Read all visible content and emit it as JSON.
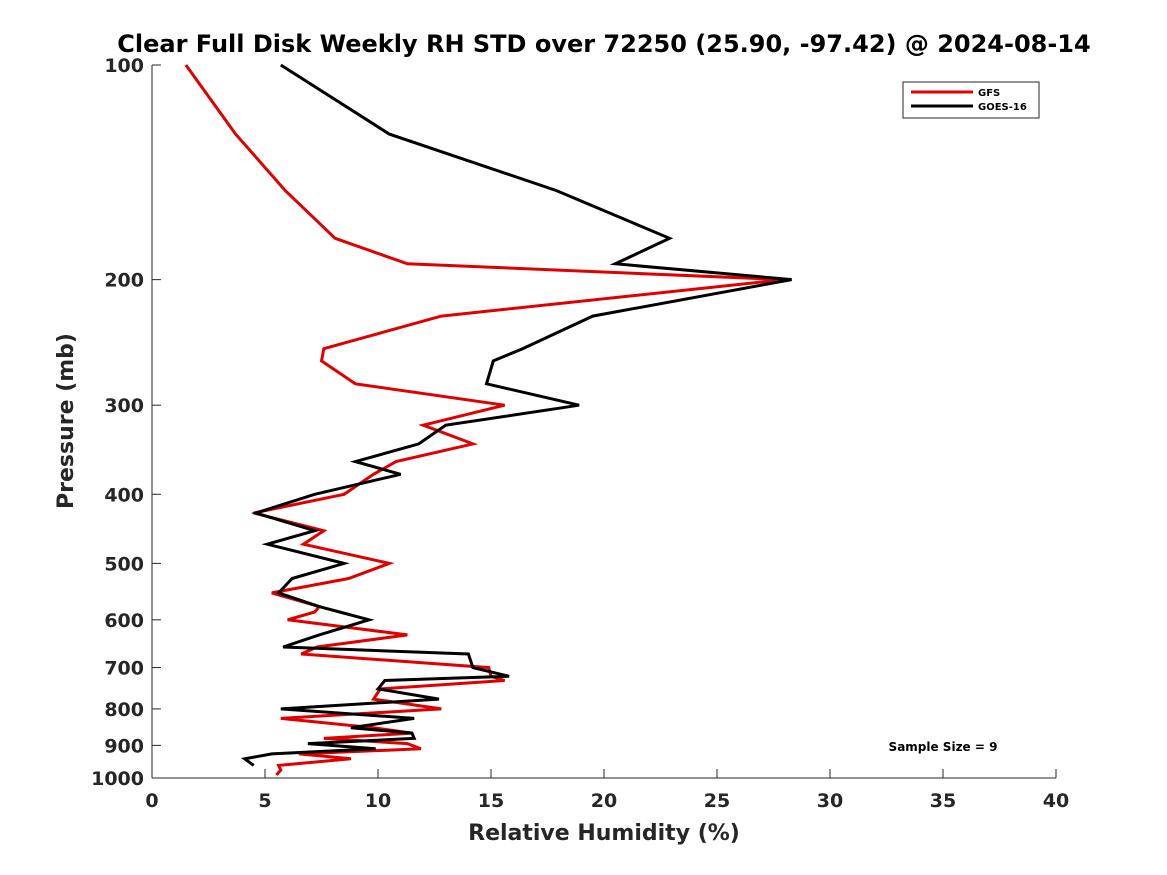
{
  "chart_data": {
    "type": "line",
    "title": "Clear Full Disk Weekly RH STD over 72250 (25.90, -97.42) @ 2024-08-14",
    "xlabel": "Relative Humidity (%)",
    "ylabel": "Pressure (mb)",
    "xlim": [
      0,
      40
    ],
    "ylim": [
      100,
      1000
    ],
    "yscale": "log",
    "y_reversed": true,
    "x_ticks": [
      0,
      5,
      10,
      15,
      20,
      25,
      30,
      35,
      40
    ],
    "y_ticks": [
      100,
      200,
      300,
      400,
      500,
      600,
      700,
      800,
      900,
      1000
    ],
    "grid": false,
    "legend_position": "top-right",
    "annotation": "Sample Size = 9",
    "series": [
      {
        "name": "GFS",
        "color": "#e00000",
        "points": [
          [
            1.5,
            100
          ],
          [
            3.7,
            125
          ],
          [
            5.9,
            150
          ],
          [
            8.1,
            175
          ],
          [
            11.3,
            190
          ],
          [
            28.0,
            200
          ],
          [
            12.8,
            225
          ],
          [
            7.6,
            250
          ],
          [
            7.5,
            260
          ],
          [
            9.0,
            280
          ],
          [
            15.6,
            300
          ],
          [
            12.0,
            320
          ],
          [
            14.2,
            340
          ],
          [
            10.8,
            360
          ],
          [
            9.8,
            375
          ],
          [
            8.5,
            400
          ],
          [
            4.5,
            425
          ],
          [
            7.6,
            450
          ],
          [
            6.7,
            470
          ],
          [
            10.5,
            500
          ],
          [
            8.7,
            525
          ],
          [
            5.3,
            550
          ],
          [
            7.4,
            575
          ],
          [
            7.2,
            585
          ],
          [
            6.0,
            600
          ],
          [
            11.3,
            630
          ],
          [
            7.3,
            655
          ],
          [
            6.6,
            670
          ],
          [
            14.9,
            700
          ],
          [
            15.0,
            720
          ],
          [
            15.6,
            730
          ],
          [
            10.1,
            750
          ],
          [
            9.8,
            775
          ],
          [
            12.8,
            800
          ],
          [
            5.7,
            825
          ],
          [
            9.8,
            850
          ],
          [
            11.5,
            865
          ],
          [
            7.6,
            880
          ],
          [
            11.3,
            895
          ],
          [
            11.9,
            910
          ],
          [
            6.5,
            925
          ],
          [
            8.8,
            940
          ],
          [
            5.6,
            960
          ],
          [
            5.7,
            975
          ],
          [
            5.5,
            990
          ]
        ]
      },
      {
        "name": "GOES-16",
        "color": "#000000",
        "points": [
          [
            5.7,
            100
          ],
          [
            10.5,
            125
          ],
          [
            17.9,
            150
          ],
          [
            22.9,
            175
          ],
          [
            20.5,
            190
          ],
          [
            28.3,
            200
          ],
          [
            19.5,
            225
          ],
          [
            16.4,
            250
          ],
          [
            15.1,
            260
          ],
          [
            14.8,
            280
          ],
          [
            18.9,
            300
          ],
          [
            13.0,
            320
          ],
          [
            11.8,
            340
          ],
          [
            9.0,
            360
          ],
          [
            11.0,
            375
          ],
          [
            7.2,
            400
          ],
          [
            4.6,
            425
          ],
          [
            7.2,
            450
          ],
          [
            5.1,
            470
          ],
          [
            8.5,
            500
          ],
          [
            6.2,
            525
          ],
          [
            5.6,
            550
          ],
          [
            7.4,
            575
          ],
          [
            8.3,
            585
          ],
          [
            9.6,
            600
          ],
          [
            7.4,
            630
          ],
          [
            5.8,
            655
          ],
          [
            14.0,
            670
          ],
          [
            14.2,
            700
          ],
          [
            15.8,
            720
          ],
          [
            10.3,
            730
          ],
          [
            10.0,
            750
          ],
          [
            12.7,
            775
          ],
          [
            5.7,
            800
          ],
          [
            11.6,
            825
          ],
          [
            8.8,
            850
          ],
          [
            11.5,
            865
          ],
          [
            11.6,
            880
          ],
          [
            6.9,
            895
          ],
          [
            9.9,
            910
          ],
          [
            5.3,
            925
          ],
          [
            4.1,
            940
          ],
          [
            4.5,
            960
          ]
        ]
      }
    ]
  }
}
